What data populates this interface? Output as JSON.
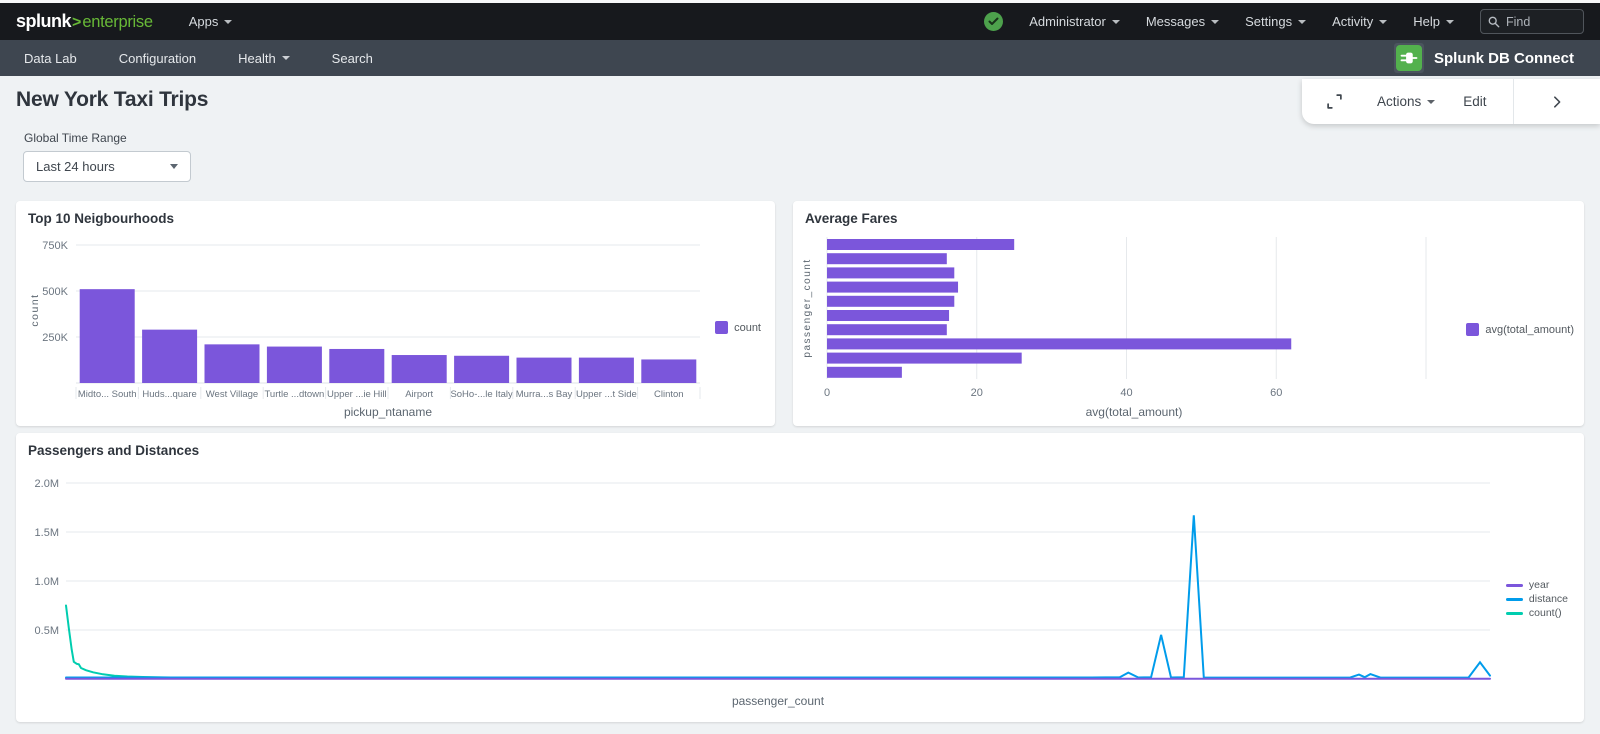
{
  "topnav": {
    "logo_brand": "splunk",
    "logo_gt": ">",
    "logo_product": "enterprise",
    "apps_label": "Apps",
    "menus": [
      {
        "label": "Administrator"
      },
      {
        "label": "Messages"
      },
      {
        "label": "Settings"
      },
      {
        "label": "Activity"
      },
      {
        "label": "Help"
      }
    ],
    "find_placeholder": "Find"
  },
  "appnav": {
    "items": [
      {
        "label": "Data Lab",
        "caret": false
      },
      {
        "label": "Configuration",
        "caret": false
      },
      {
        "label": "Health",
        "caret": true
      },
      {
        "label": "Search",
        "caret": false
      }
    ],
    "app_title": "Splunk DB Connect"
  },
  "toolbar": {
    "actions_label": "Actions",
    "edit_label": "Edit"
  },
  "header": {
    "title": "New York Taxi Trips"
  },
  "filters": {
    "time_range_label": "Global Time Range",
    "time_range_value": "Last 24 hours"
  },
  "colors": {
    "accent_purple": "#7B56DB",
    "accent_blue": "#009CEB",
    "accent_teal": "#00CDAF",
    "brand_green": "#68b937",
    "health_green": "#4da14c",
    "db_connect_green": "#53b14d",
    "grid": "#e6e9ec",
    "axis_text": "#6b7580",
    "axis_title": "#5c6670"
  },
  "chart_data": [
    {
      "type": "bar",
      "title": "Top 10 Neigbourhoods",
      "categories": [
        "Midto... South",
        "Huds...quare",
        "West Village",
        "Turtle ...dtown",
        "Upper ...ie Hill",
        "Airport",
        "SoHo-...le Italy",
        "Murra...s Bay",
        "Upper ...t Side",
        "Clinton"
      ],
      "values": [
        510000,
        290000,
        210000,
        198000,
        185000,
        152000,
        148000,
        138000,
        138000,
        128000
      ],
      "xlabel": "pickup_ntaname",
      "ylabel": "count",
      "ylim": [
        0,
        800000
      ],
      "yticks": [
        {
          "v": 250000,
          "label": "250K"
        },
        {
          "v": 500000,
          "label": "500K"
        },
        {
          "v": 750000,
          "label": "750K"
        }
      ],
      "bar_color": "#7B56DB",
      "legend_shape": "square",
      "legend": [
        {
          "label": "count",
          "color": "#7B56DB"
        }
      ]
    },
    {
      "type": "hbar",
      "title": "Average Fares",
      "values": [
        25,
        16,
        17,
        17.5,
        17,
        16.3,
        16,
        62,
        26,
        10
      ],
      "xlabel": "avg(total_amount)",
      "ylabel": "passenger_count",
      "xlim": [
        0,
        82
      ],
      "xticks": [
        {
          "v": 0,
          "label": "0"
        },
        {
          "v": 20,
          "label": "20"
        },
        {
          "v": 40,
          "label": "40"
        },
        {
          "v": 60,
          "label": "60"
        },
        {
          "v": 80,
          "label": ""
        }
      ],
      "bar_color": "#7B56DB",
      "legend_shape": "square",
      "legend": [
        {
          "label": "avg(total_amount)",
          "color": "#7B56DB"
        }
      ]
    },
    {
      "type": "line",
      "title": "Passengers and Distances",
      "xlabel": "passenger_count",
      "ylim": [
        0,
        2100000
      ],
      "yticks": [
        {
          "v": 500000,
          "label": "0.5M"
        },
        {
          "v": 1000000,
          "label": "1.0M"
        },
        {
          "v": 1500000,
          "label": "1.5M"
        },
        {
          "v": 2000000,
          "label": "2.0M"
        }
      ],
      "series": [
        {
          "name": "count()",
          "color": "#00CDAF",
          "points": [
            [
              0,
              750000
            ],
            [
              0.2,
              520000
            ],
            [
              0.4,
              300000
            ],
            [
              0.55,
              175000
            ],
            [
              0.75,
              155000
            ],
            [
              0.9,
              150000
            ],
            [
              1.05,
              112000
            ],
            [
              1.4,
              90000
            ],
            [
              1.9,
              68000
            ],
            [
              2.6,
              48000
            ],
            [
              3.4,
              34000
            ],
            [
              4.3,
              26000
            ],
            [
              5.4,
              20000
            ],
            [
              6.8,
              16000
            ],
            [
              8.5,
              13000
            ],
            [
              10.3,
              11000
            ],
            [
              12.4,
              9500
            ],
            [
              15.2,
              8500
            ],
            [
              18.7,
              8000
            ],
            [
              23.6,
              7500
            ],
            [
              27.8,
              7000
            ]
          ]
        },
        {
          "name": "distance",
          "color": "#009CEB",
          "points": [
            [
              0,
              15000
            ],
            [
              72,
              15000
            ],
            [
              74,
              18000
            ],
            [
              74.6,
              65000
            ],
            [
              75.3,
              15000
            ],
            [
              76.2,
              18000
            ],
            [
              76.9,
              450000
            ],
            [
              77.6,
              15000
            ],
            [
              78.5,
              18000
            ],
            [
              79.2,
              1670000
            ],
            [
              79.9,
              15000
            ],
            [
              85,
              14000
            ],
            [
              90.2,
              15000
            ],
            [
              90.8,
              45000
            ],
            [
              91.2,
              18000
            ],
            [
              91.6,
              50000
            ],
            [
              92.3,
              14000
            ],
            [
              98.5,
              15000
            ],
            [
              99.3,
              170000
            ],
            [
              100,
              35000
            ]
          ]
        },
        {
          "name": "year",
          "color": "#7B56DB",
          "points": [
            [
              0,
              2018
            ],
            [
              100,
              2018
            ]
          ]
        }
      ],
      "legend_shape": "line",
      "legend": [
        {
          "label": "year",
          "color": "#7B56DB"
        },
        {
          "label": "distance",
          "color": "#009CEB"
        },
        {
          "label": "count()",
          "color": "#00CDAF"
        }
      ]
    }
  ]
}
